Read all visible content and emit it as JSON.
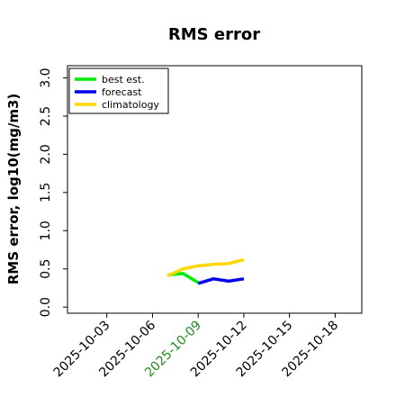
{
  "chart_data": {
    "type": "line",
    "title": "RMS error",
    "y_label": "RMS error, log10(mg/m3)",
    "x": [
      "2025-10-07",
      "2025-10-08",
      "2025-10-09",
      "2025-10-10",
      "2025-10-11",
      "2025-10-12"
    ],
    "series": [
      {
        "name": "best est.",
        "color": "#00ee00",
        "values": [
          0.42,
          0.44,
          0.32,
          null,
          null,
          null
        ]
      },
      {
        "name": "forecast",
        "color": "#0000ee",
        "values": [
          null,
          null,
          0.31,
          0.37,
          0.34,
          0.37
        ]
      },
      {
        "name": "climatology",
        "color": "#ffd700",
        "values": [
          0.41,
          0.5,
          0.54,
          0.56,
          0.57,
          0.62
        ]
      }
    ],
    "xlim": [
      "2025-09-30T10:00",
      "2025-10-19T18:00"
    ],
    "xticks": [
      "2025-10-03",
      "2025-10-06",
      "2025-10-09",
      "2025-10-12",
      "2025-10-15",
      "2025-10-18"
    ],
    "highlight_xtick": "2025-10-09",
    "highlight_color": "#228b22",
    "ylim": [
      -0.08,
      3.16
    ],
    "yticks": [
      {
        "value": 0,
        "label": "0.0"
      },
      {
        "value": 0.5,
        "label": "0.5"
      },
      {
        "value": 1,
        "label": "1.0"
      },
      {
        "value": 1.5,
        "label": "1.5"
      },
      {
        "value": 2,
        "label": "2.0"
      },
      {
        "value": 2.5,
        "label": "2.5"
      },
      {
        "value": 3,
        "label": "3.0"
      }
    ],
    "legend": "upper left"
  }
}
